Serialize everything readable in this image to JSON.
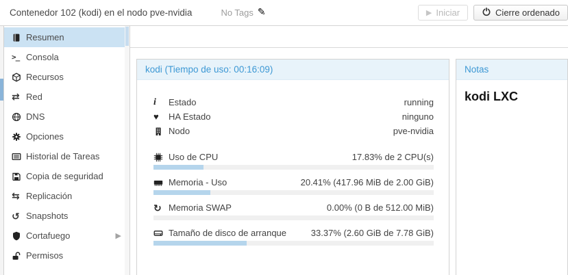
{
  "topbar": {
    "title": "Contenedor 102 (kodi) en el nodo pve-nvidia",
    "tags_label": "No Tags",
    "start_button": "Iniciar",
    "shutdown_button": "Cierre ordenado"
  },
  "sidebar": {
    "items": [
      {
        "label": "Resumen",
        "icon": "book-icon",
        "selected": true
      },
      {
        "label": "Consola",
        "icon": "terminal-icon"
      },
      {
        "label": "Recursos",
        "icon": "cube-icon"
      },
      {
        "label": "Red",
        "icon": "network-arrows-icon"
      },
      {
        "label": "DNS",
        "icon": "globe-icon"
      },
      {
        "label": "Opciones",
        "icon": "gear-icon"
      },
      {
        "label": "Historial de Tareas",
        "icon": "task-list-icon"
      },
      {
        "label": "Copia de seguridad",
        "icon": "floppy-icon"
      },
      {
        "label": "Replicación",
        "icon": "replication-arrows-icon"
      },
      {
        "label": "Snapshots",
        "icon": "history-icon"
      },
      {
        "label": "Cortafuego",
        "icon": "shield-icon",
        "has_submenu": true
      },
      {
        "label": "Permisos",
        "icon": "unlock-icon"
      }
    ]
  },
  "kodi_panel": {
    "title": "kodi (Tiempo de uso: 00:16:09)",
    "status_rows": [
      {
        "icon": "info-icon",
        "label": "Estado",
        "value": "running"
      },
      {
        "icon": "heartbeat-icon",
        "label": "HA Estado",
        "value": "ninguno"
      },
      {
        "icon": "server-icon",
        "label": "Nodo",
        "value": "pve-nvidia"
      }
    ],
    "metric_rows": [
      {
        "icon": "cpu-icon",
        "label": "Uso de CPU",
        "value": "17.83% de 2 CPU(s)",
        "percent": 17.83
      },
      {
        "icon": "memory-icon",
        "label": "Memoria - Uso",
        "value": "20.41% (417.96 MiB de 2.00 GiB)",
        "percent": 20.41
      },
      {
        "icon": "swap-icon",
        "label": "Memoria SWAP",
        "value": "0.00% (0 B de 512.00 MiB)",
        "percent": 0
      },
      {
        "icon": "disk-icon",
        "label": "Tamaño de disco de arranque",
        "value": "33.37% (2.60 GiB de 7.78 GiB)",
        "percent": 33.37
      }
    ]
  },
  "notes_panel": {
    "title": "Notas",
    "content": "kodi LXC"
  },
  "colors": {
    "accent_blue": "#3d98d4",
    "panel_header_bg": "#e8f3fa",
    "selected_item_bg": "#cbe2f3",
    "progress_fill": "#b5d5ec",
    "progress_track": "#f0f0f0"
  }
}
